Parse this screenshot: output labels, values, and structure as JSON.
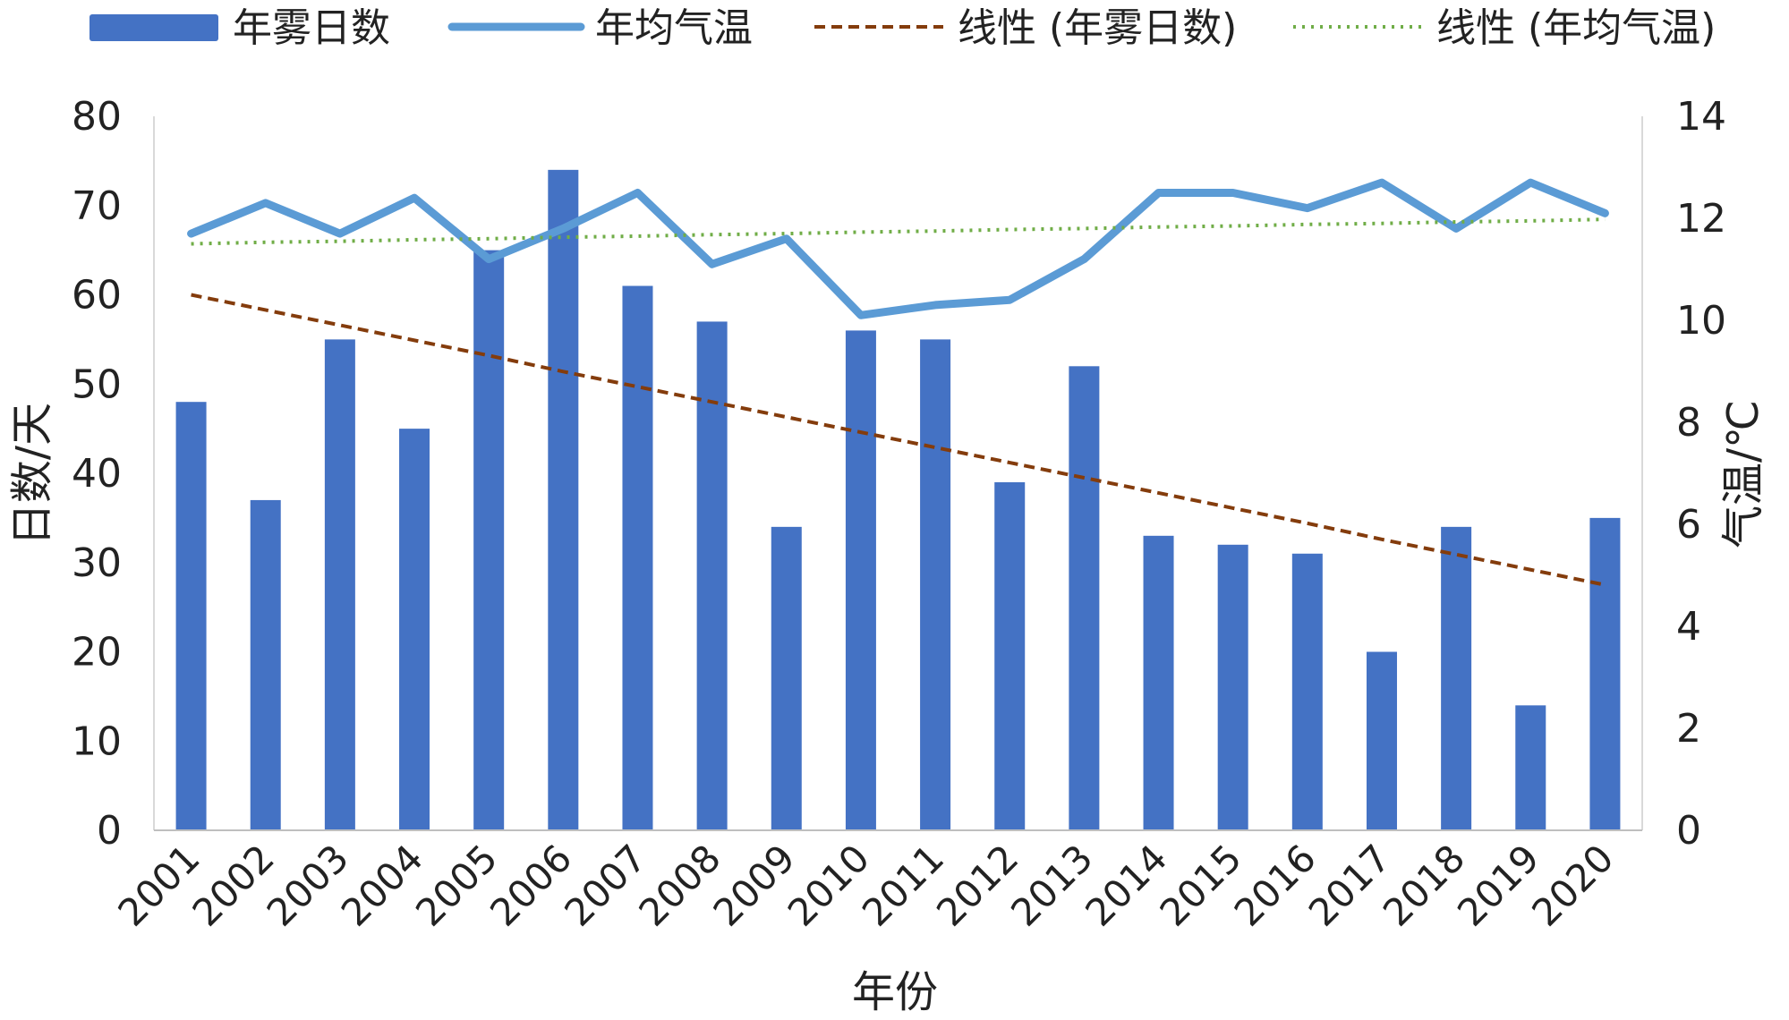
{
  "chart_data": {
    "type": "bar",
    "categories": [
      "2001",
      "2002",
      "2003",
      "2004",
      "2005",
      "2006",
      "2007",
      "2008",
      "2009",
      "2010",
      "2011",
      "2012",
      "2013",
      "2014",
      "2015",
      "2016",
      "2017",
      "2018",
      "2019",
      "2020"
    ],
    "series": [
      {
        "name": "年雾日数",
        "type": "bar",
        "axis": "left",
        "color": "#4472C4",
        "values": [
          48,
          37,
          55,
          45,
          65,
          74,
          61,
          57,
          34,
          56,
          55,
          39,
          52,
          33,
          32,
          31,
          20,
          34,
          14,
          35
        ]
      },
      {
        "name": "年均气温",
        "type": "line",
        "axis": "right",
        "color": "#5B9BD5",
        "values": [
          11.7,
          12.3,
          11.7,
          12.4,
          11.2,
          11.8,
          12.5,
          11.1,
          11.6,
          10.1,
          10.3,
          10.4,
          11.2,
          12.5,
          12.5,
          12.2,
          12.7,
          11.8,
          12.7,
          12.1
        ]
      },
      {
        "name": "线性 (年雾日数)",
        "type": "trendline",
        "axis": "left",
        "color": "#843C0C",
        "dash": "dashed",
        "values": [
          60.0,
          58.3,
          56.6,
          54.9,
          53.2,
          51.4,
          49.7,
          48.0,
          46.3,
          44.6,
          42.9,
          41.2,
          39.5,
          37.8,
          36.1,
          34.4,
          32.6,
          30.9,
          29.2,
          27.5
        ]
      },
      {
        "name": "线性 (年均气温)",
        "type": "trendline",
        "axis": "right",
        "color": "#70AD47",
        "dash": "dotted",
        "values": [
          11.5,
          11.53,
          11.55,
          11.58,
          11.6,
          11.63,
          11.65,
          11.68,
          11.7,
          11.73,
          11.75,
          11.78,
          11.8,
          11.83,
          11.85,
          11.88,
          11.9,
          11.93,
          11.95,
          11.98
        ]
      }
    ],
    "xlabel": "年份",
    "ylabel": "日数/天",
    "y2label": "气温/℃",
    "ylim": [
      0,
      80
    ],
    "y2lim": [
      0,
      14
    ],
    "yticks": [
      "0",
      "10",
      "20",
      "30",
      "40",
      "50",
      "60",
      "70",
      "80"
    ],
    "y2ticks": [
      "0",
      "2",
      "4",
      "6",
      "8",
      "10",
      "12",
      "14"
    ],
    "legend_position": "top",
    "grid": false
  }
}
